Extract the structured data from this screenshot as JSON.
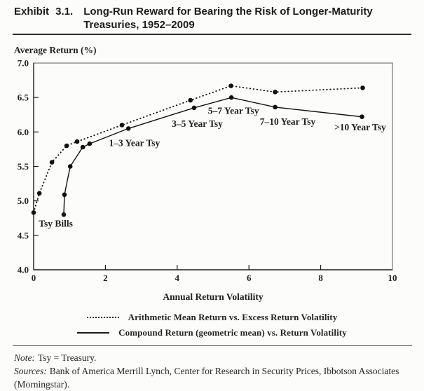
{
  "page": {
    "exhibit_label": "Exhibit 3.1.",
    "title_line1": "Long-Run Reward for Bearing the Risk of Longer-Maturity",
    "title_line2": "Treasuries, 1952–2009",
    "note_label": "Note:",
    "note_text": "Tsy = Treasury.",
    "sources_label": "Sources:",
    "sources_text": "Bank of America Merrill Lynch, Center for Research in Security Prices, Ibbotson Associates (Morningstar)."
  },
  "chart_data": {
    "type": "line",
    "title": "Long-Run Reward for Bearing the Risk of Longer-Maturity Treasuries, 1952–2009",
    "y_axis_title": "Average Return (%)",
    "xlabel": "Annual Return Volatility",
    "ylabel": "Average Return (%)",
    "xlim": [
      0,
      10
    ],
    "ylim": [
      4.0,
      7.0
    ],
    "x_ticks": [
      0,
      2,
      4,
      6,
      8,
      10
    ],
    "y_ticks": [
      4.0,
      4.5,
      5.0,
      5.5,
      6.0,
      6.5,
      7.0
    ],
    "grid": false,
    "legend_position": "bottom",
    "marker": "filled-circle",
    "line_color": "#111111",
    "series": [
      {
        "name": "Arithmetic Mean Return vs. Excess Return Volatility",
        "style": "dotted",
        "points": [
          [
            0.0,
            4.83
          ],
          [
            0.16,
            5.11
          ],
          [
            0.51,
            5.56
          ],
          [
            0.92,
            5.8
          ],
          [
            1.21,
            5.86
          ],
          [
            2.46,
            6.1
          ],
          [
            4.37,
            6.46
          ],
          [
            5.5,
            6.67
          ],
          [
            6.73,
            6.58
          ],
          [
            9.17,
            6.64
          ]
        ]
      },
      {
        "name": "Compound Return (geometric mean) vs. Return Volatility",
        "style": "solid",
        "points": [
          [
            0.84,
            4.8
          ],
          [
            0.86,
            5.09
          ],
          [
            1.02,
            5.5
          ],
          [
            1.37,
            5.78
          ],
          [
            1.56,
            5.83
          ],
          [
            2.64,
            6.05
          ],
          [
            4.47,
            6.35
          ],
          [
            5.51,
            6.5
          ],
          [
            6.73,
            6.36
          ],
          [
            9.15,
            6.22
          ]
        ]
      }
    ],
    "annotations": [
      {
        "text": "Tsy Bills",
        "x": 0.14,
        "y": 4.67,
        "anchor": "start"
      },
      {
        "text": "1–3 Year Tsy",
        "x": 2.81,
        "y": 5.84,
        "anchor": "middle"
      },
      {
        "text": "3–5 Year Tsy",
        "x": 4.56,
        "y": 6.12,
        "anchor": "middle"
      },
      {
        "text": "5–7 Year Tsy",
        "x": 5.57,
        "y": 6.31,
        "anchor": "middle"
      },
      {
        "text": "7–10 Year Tsy",
        "x": 7.08,
        "y": 6.15,
        "anchor": "middle"
      },
      {
        "text": ">10 Year Tsy",
        "x": 9.1,
        "y": 6.07,
        "anchor": "middle"
      }
    ]
  }
}
